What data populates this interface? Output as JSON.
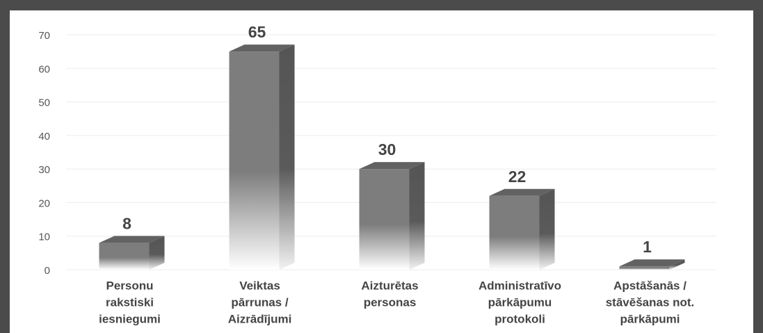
{
  "chart_data": {
    "type": "bar3d",
    "categories": [
      [
        "Personu",
        "rakstiski",
        "iesniegumi"
      ],
      [
        "Veiktas",
        "pārrunas /",
        "Aizrādījumi"
      ],
      [
        "Aizturētas",
        "personas"
      ],
      [
        "Administratīvo",
        "pārkāpumu",
        "protokoli"
      ],
      [
        "Apstāšanās /",
        "stāvēšanas not.",
        "pārkāpumi"
      ]
    ],
    "values": [
      8,
      65,
      30,
      22,
      1
    ],
    "color": "#7d7d7d",
    "ylim": [
      0,
      70
    ],
    "yticks": [
      0,
      10,
      20,
      30,
      40,
      50,
      60,
      70
    ],
    "grid": true
  }
}
